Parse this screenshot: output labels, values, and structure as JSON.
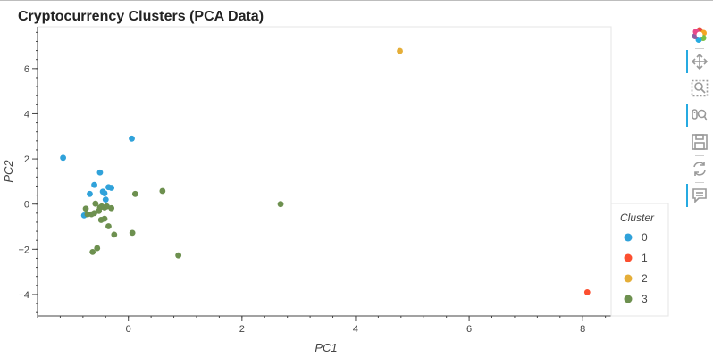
{
  "chart_data": {
    "type": "scatter",
    "title": "Cryptocurrency Clusters (PCA Data)",
    "xlabel": "PC1",
    "ylabel": "PC2",
    "xlim": [
      -1.6,
      8.5
    ],
    "ylim": [
      -4.95,
      7.85
    ],
    "xticks": [
      0,
      2,
      4,
      6,
      8
    ],
    "yticks": [
      -4,
      -2,
      0,
      2,
      4,
      6
    ],
    "grid": false,
    "legend": {
      "title": "Cluster",
      "position": "bottom-right"
    },
    "series": [
      {
        "name": "0",
        "color": "#30a2da",
        "points": [
          [
            -1.15,
            2.05
          ],
          [
            0.06,
            2.9
          ],
          [
            -0.5,
            1.4
          ],
          [
            -0.6,
            0.85
          ],
          [
            -0.68,
            0.45
          ],
          [
            -0.45,
            0.55
          ],
          [
            -0.42,
            0.48
          ],
          [
            -0.35,
            0.75
          ],
          [
            -0.3,
            0.72
          ],
          [
            -0.4,
            0.2
          ],
          [
            -0.78,
            -0.5
          ]
        ]
      },
      {
        "name": "1",
        "color": "#fc4f30",
        "points": [
          [
            8.08,
            -3.9
          ]
        ]
      },
      {
        "name": "2",
        "color": "#e5ae38",
        "points": [
          [
            4.78,
            6.78
          ]
        ]
      },
      {
        "name": "3",
        "color": "#6d904f",
        "points": [
          [
            -0.75,
            -0.2
          ],
          [
            -0.72,
            -0.45
          ],
          [
            -0.65,
            -0.45
          ],
          [
            -0.58,
            0.02
          ],
          [
            -0.6,
            -0.4
          ],
          [
            -0.52,
            -0.3
          ],
          [
            -0.5,
            -0.15
          ],
          [
            -0.47,
            -0.1
          ],
          [
            -0.42,
            -0.15
          ],
          [
            -0.38,
            -0.1
          ],
          [
            -0.3,
            -0.18
          ],
          [
            -0.48,
            -0.7
          ],
          [
            -0.42,
            -0.65
          ],
          [
            -0.35,
            -0.98
          ],
          [
            -0.25,
            -1.35
          ],
          [
            -0.55,
            -1.95
          ],
          [
            -0.63,
            -2.12
          ],
          [
            0.07,
            -1.27
          ],
          [
            0.12,
            0.45
          ],
          [
            0.6,
            0.58
          ],
          [
            0.88,
            -2.27
          ],
          [
            2.68,
            0.0
          ]
        ]
      }
    ]
  },
  "toolbar": {
    "items": [
      {
        "name": "bokeh-logo-icon"
      },
      {
        "name": "pan-icon"
      },
      {
        "name": "box-zoom-icon"
      },
      {
        "name": "wheel-zoom-icon"
      },
      {
        "name": "save-icon"
      },
      {
        "name": "reset-icon"
      },
      {
        "name": "hover-icon"
      }
    ]
  }
}
